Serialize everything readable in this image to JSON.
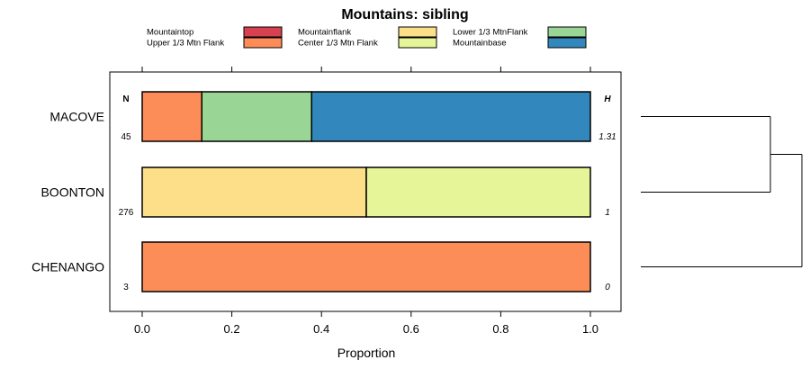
{
  "chart_data": {
    "type": "bar",
    "orientation": "horizontal",
    "stacked": true,
    "title": "Mountains: sibling",
    "xlabel": "Proportion",
    "xlim": [
      0,
      1
    ],
    "xticks": [
      "0.0",
      "0.2",
      "0.4",
      "0.6",
      "0.8",
      "1.0"
    ],
    "n_header": "N",
    "h_header": "H",
    "legend_position": "top",
    "legend": [
      {
        "name": "Mountaintop",
        "color": "#d7404f"
      },
      {
        "name": "Upper 1/3 Mtn Flank",
        "color": "#fc8d59"
      },
      {
        "name": "Mountainflank",
        "color": "#fedf89"
      },
      {
        "name": "Center 1/3 Mtn Flank",
        "color": "#e6f598"
      },
      {
        "name": "Lower 1/3 MtnFlank",
        "color": "#99d594"
      },
      {
        "name": "Mountainbase",
        "color": "#3288bd"
      }
    ],
    "rows": [
      {
        "label": "MACOVE",
        "n": "45",
        "h": "1.31",
        "segments": [
          {
            "name": "Upper 1/3 Mtn Flank",
            "value": 0.133
          },
          {
            "name": "Lower 1/3 MtnFlank",
            "value": 0.245
          },
          {
            "name": "Mountainbase",
            "value": 0.622
          }
        ]
      },
      {
        "label": "BOONTON",
        "n": "276",
        "h": "1",
        "segments": [
          {
            "name": "Mountainflank",
            "value": 0.5
          },
          {
            "name": "Center 1/3 Mtn Flank",
            "value": 0.5
          }
        ]
      },
      {
        "label": "CHENANGO",
        "n": "3",
        "h": "0",
        "segments": [
          {
            "name": "Upper 1/3 Mtn Flank",
            "value": 1.0
          }
        ]
      }
    ],
    "dendrogram": {
      "merges": [
        {
          "left": "MACOVE",
          "right": "BOONTON"
        },
        {
          "left": "MACOVE+BOONTON",
          "right": "CHENANGO"
        }
      ]
    }
  }
}
